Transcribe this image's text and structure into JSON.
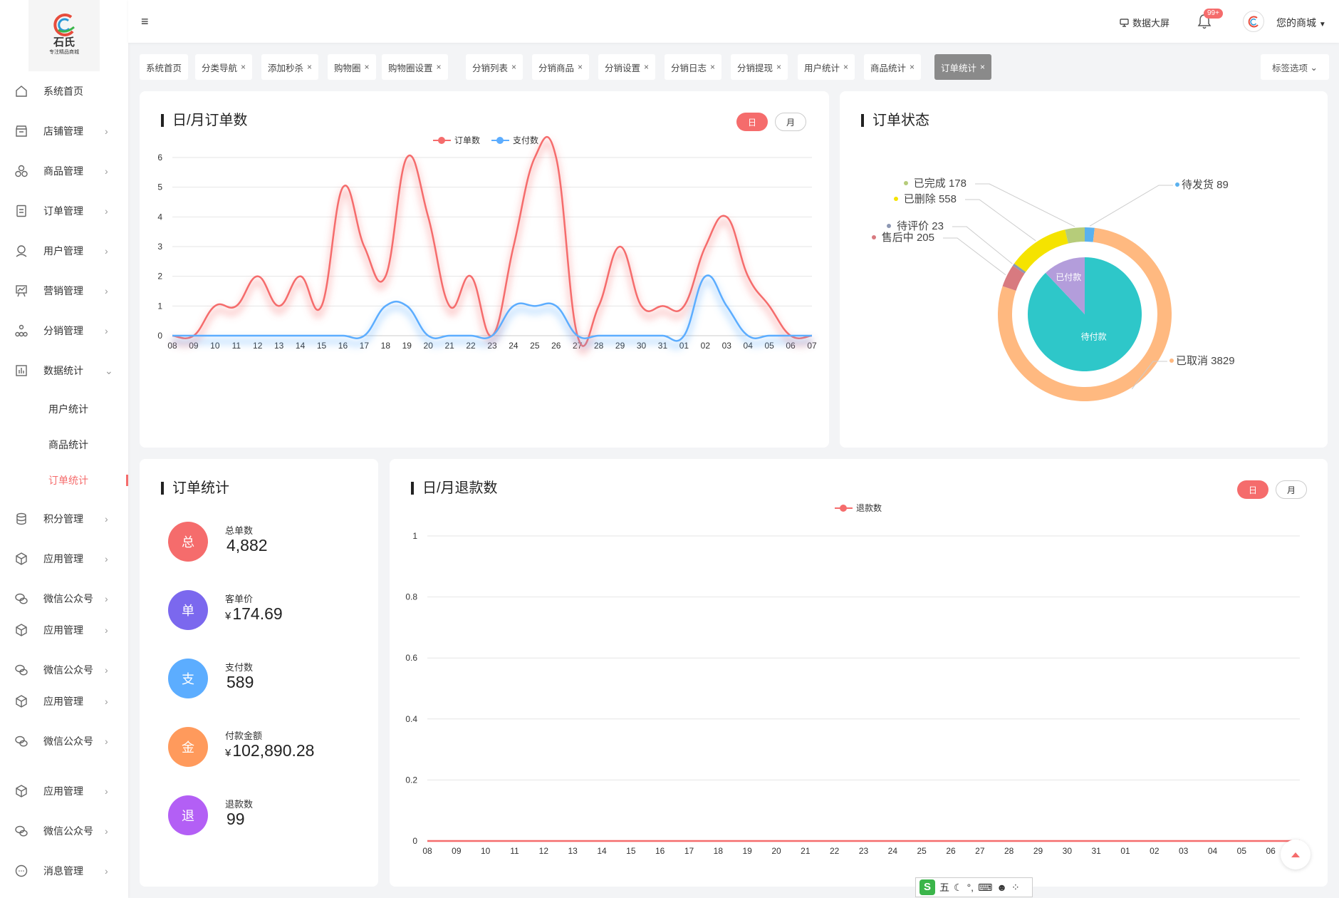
{
  "logo": {
    "title": "石氏",
    "subtitle": "专注精品商城"
  },
  "sidebar": {
    "items": [
      {
        "label": "系统首页",
        "icon": "home-icon",
        "arrow": ""
      },
      {
        "label": "店铺管理",
        "icon": "store-icon",
        "arrow": "›"
      },
      {
        "label": "商品管理",
        "icon": "goods-icon",
        "arrow": "›"
      },
      {
        "label": "订单管理",
        "icon": "order-icon",
        "arrow": "›"
      },
      {
        "label": "用户管理",
        "icon": "user-icon",
        "arrow": "›"
      },
      {
        "label": "营销管理",
        "icon": "marketing-icon",
        "arrow": "›"
      },
      {
        "label": "分销管理",
        "icon": "distribution-icon",
        "arrow": "›"
      },
      {
        "label": "数据统计",
        "icon": "statistics-icon",
        "arrow": "⌄"
      }
    ],
    "subitems": [
      {
        "label": "用户统计",
        "active": false
      },
      {
        "label": "商品统计",
        "active": false
      },
      {
        "label": "订单统计",
        "active": true
      }
    ],
    "items2": [
      {
        "label": "积分管理",
        "icon": "points-icon",
        "arrow": "›"
      },
      {
        "label": "应用管理",
        "icon": "app-icon",
        "arrow": "›"
      },
      {
        "label": "微信公众号",
        "icon": "wechat-icon",
        "arrow": "›"
      },
      {
        "label": "应用管理",
        "icon": "app-icon",
        "arrow": "›"
      },
      {
        "label": "微信公众号",
        "icon": "wechat-icon",
        "arrow": "›"
      },
      {
        "label": "应用管理",
        "icon": "app-icon",
        "arrow": "›"
      },
      {
        "label": "微信公众号",
        "icon": "wechat-icon",
        "arrow": "›"
      },
      {
        "label": "应用管理",
        "icon": "app-icon",
        "arrow": "›"
      },
      {
        "label": "微信公众号",
        "icon": "wechat-icon",
        "arrow": "›"
      },
      {
        "label": "消息管理",
        "icon": "message-icon",
        "arrow": "›"
      }
    ]
  },
  "header": {
    "menu_icon": "≡",
    "big_screen": "数据大屏",
    "badge": "99+",
    "shop_name": "您的商城"
  },
  "tabs": [
    {
      "label": "系统首页",
      "closable": false,
      "active": false
    },
    {
      "label": "分类导航",
      "closable": true,
      "active": false
    },
    {
      "label": "添加秒杀",
      "closable": true,
      "active": false
    },
    {
      "label": "购物圈",
      "closable": true,
      "active": false
    },
    {
      "label": "购物圈设置",
      "closable": true,
      "active": false
    },
    {
      "label": "分销列表",
      "closable": true,
      "active": false
    },
    {
      "label": "分销商品",
      "closable": true,
      "active": false
    },
    {
      "label": "分销设置",
      "closable": true,
      "active": false
    },
    {
      "label": "分销日志",
      "closable": true,
      "active": false
    },
    {
      "label": "分销提现",
      "closable": true,
      "active": false
    },
    {
      "label": "用户统计",
      "closable": true,
      "active": false
    },
    {
      "label": "商品统计",
      "closable": true,
      "active": false
    },
    {
      "label": "订单统计",
      "closable": true,
      "active": true
    }
  ],
  "tab_options": "标签选项",
  "toggle": {
    "day": "日",
    "month": "月"
  },
  "stats": {
    "title": "订单统计",
    "items": [
      {
        "icon": "总",
        "label": "总单数",
        "value": "4,882",
        "currency": "",
        "color": "#f56c6c"
      },
      {
        "icon": "单",
        "label": "客单价",
        "value": "174.69",
        "currency": "¥",
        "color": "#7b68ee"
      },
      {
        "icon": "支",
        "label": "支付数",
        "value": "589",
        "currency": "",
        "color": "#5cadff"
      },
      {
        "icon": "金",
        "label": "付款金额",
        "value": "102,890.28",
        "currency": "¥",
        "color": "#ff9a5c"
      },
      {
        "icon": "退",
        "label": "退款数",
        "value": "99",
        "currency": "",
        "color": "#b35ff5"
      }
    ]
  },
  "chart_data": [
    {
      "type": "line",
      "title": "日/月订单数",
      "x": [
        "08",
        "09",
        "10",
        "11",
        "12",
        "13",
        "14",
        "15",
        "16",
        "17",
        "18",
        "19",
        "20",
        "21",
        "22",
        "23",
        "24",
        "25",
        "26",
        "27",
        "28",
        "29",
        "30",
        "31",
        "01",
        "02",
        "03",
        "04",
        "05",
        "06",
        "07"
      ],
      "series": [
        {
          "name": "订单数",
          "color": "#f56c6c",
          "values": [
            0,
            0,
            1,
            1,
            2,
            1,
            2,
            1,
            5,
            3,
            2,
            6,
            4,
            1,
            2,
            0,
            3,
            6,
            6,
            0,
            1,
            3,
            1,
            1,
            1,
            3,
            4,
            2,
            1,
            0,
            0
          ]
        },
        {
          "name": "支付数",
          "color": "#5cadff",
          "values": [
            0,
            0,
            0,
            0,
            0,
            0,
            0,
            0,
            0,
            0,
            1,
            1,
            0,
            0,
            0,
            0,
            1,
            1,
            1,
            0,
            0,
            0,
            0,
            0,
            0,
            2,
            1,
            0,
            0,
            0,
            0
          ]
        }
      ],
      "ylim": [
        0,
        6
      ],
      "yticks": [
        "0",
        "1",
        "2",
        "3",
        "4",
        "5",
        "6"
      ],
      "legend_position": "top-center",
      "grid": true
    },
    {
      "type": "pie",
      "title": "订单状态",
      "inner": [
        {
          "name": "已付款",
          "value": 589,
          "color": "#b39ddb"
        },
        {
          "name": "待付款",
          "value": 4293,
          "color": "#2ec7c9"
        }
      ],
      "outer": [
        {
          "name": "待发货",
          "value": 89,
          "color": "#5ab1ef",
          "label": "待发货 89"
        },
        {
          "name": "已取消",
          "value": 3829,
          "color": "#ffb980",
          "label": "已取消 3829"
        },
        {
          "name": "售后中",
          "value": 205,
          "color": "#d87a80",
          "label": "售后中 205"
        },
        {
          "name": "待评价",
          "value": 23,
          "color": "#8d98b3",
          "label": "待评价 23"
        },
        {
          "name": "已删除",
          "value": 558,
          "color": "#f5e300",
          "label": "已删除 558"
        },
        {
          "name": "已完成",
          "value": 178,
          "color": "#b6cc7a",
          "label": "已完成 178"
        }
      ]
    },
    {
      "type": "line",
      "title": "日/月退款数",
      "x": [
        "08",
        "09",
        "10",
        "11",
        "12",
        "13",
        "14",
        "15",
        "16",
        "17",
        "18",
        "19",
        "20",
        "21",
        "22",
        "23",
        "24",
        "25",
        "26",
        "27",
        "28",
        "29",
        "30",
        "31",
        "01",
        "02",
        "03",
        "04",
        "05",
        "06",
        "0"
      ],
      "series": [
        {
          "name": "退款数",
          "color": "#f56c6c",
          "values": [
            0,
            0,
            0,
            0,
            0,
            0,
            0,
            0,
            0,
            0,
            0,
            0,
            0,
            0,
            0,
            0,
            0,
            0,
            0,
            0,
            0,
            0,
            0,
            0,
            0,
            0,
            0,
            0,
            0,
            0,
            0
          ]
        }
      ],
      "ylim": [
        0,
        1
      ],
      "yticks": [
        "0",
        "0.2",
        "0.4",
        "0.6",
        "0.8",
        "1"
      ],
      "legend_position": "top-center",
      "grid": true
    }
  ],
  "ime": {
    "brand": "S",
    "mode": "五"
  }
}
